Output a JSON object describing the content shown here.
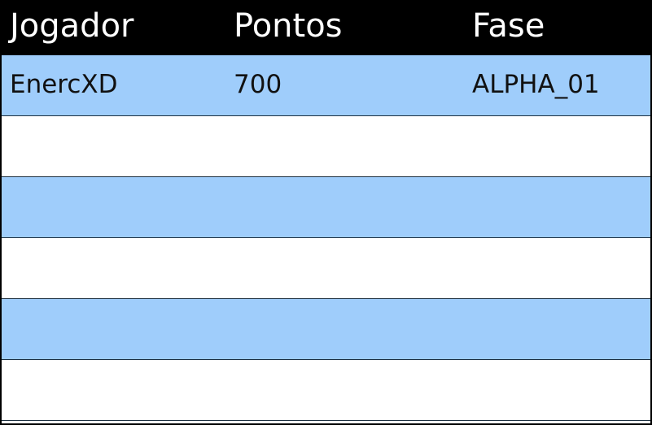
{
  "table": {
    "columns": [
      "Jogador",
      "Pontos",
      "Fase"
    ],
    "rows": [
      [
        "EnercXD",
        "700",
        "ALPHA_01"
      ],
      [
        "",
        "",
        ""
      ],
      [
        "",
        "",
        ""
      ],
      [
        "",
        "",
        ""
      ],
      [
        "",
        "",
        ""
      ],
      [
        "",
        "",
        ""
      ]
    ]
  },
  "colors": {
    "header_background": "#000000",
    "header_text": "#ffffff",
    "row_blue": "#9fcdfb",
    "row_white": "#ffffff"
  }
}
